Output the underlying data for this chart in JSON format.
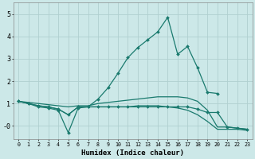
{
  "xlabel": "Humidex (Indice chaleur)",
  "bg_color": "#cce8e8",
  "grid_color": "#b0d0d0",
  "line_color": "#1a7a6e",
  "xlim": [
    -0.5,
    23.5
  ],
  "ylim": [
    -0.6,
    5.5
  ],
  "xtick_labels": [
    "0",
    "1",
    "2",
    "3",
    "4",
    "5",
    "6",
    "7",
    "8",
    "9",
    "10",
    "11",
    "12",
    "13",
    "14",
    "15",
    "16",
    "17",
    "18",
    "19",
    "20",
    "21",
    "22",
    "23"
  ],
  "ytick_values": [
    0,
    1,
    2,
    3,
    4,
    5
  ],
  "ytick_labels": [
    "-0",
    "1",
    "2",
    "3",
    "4",
    "5"
  ],
  "series": [
    {
      "x": [
        0,
        1,
        2,
        3,
        4,
        5,
        6,
        7,
        8,
        9,
        10,
        11,
        12,
        13,
        14,
        15,
        16,
        17,
        18,
        19,
        20
      ],
      "y": [
        1.1,
        1.0,
        0.9,
        0.85,
        0.75,
        0.5,
        0.85,
        0.85,
        1.2,
        1.7,
        2.35,
        3.05,
        3.5,
        3.85,
        4.2,
        4.85,
        3.2,
        3.55,
        2.6,
        1.5,
        1.45
      ],
      "has_markers": true
    },
    {
      "x": [
        0,
        1,
        2,
        3,
        4,
        5,
        6,
        7,
        8,
        9,
        10,
        11,
        12,
        13,
        14,
        15,
        16,
        17,
        18,
        19,
        20,
        21,
        22,
        23
      ],
      "y": [
        1.1,
        1.0,
        0.85,
        0.8,
        0.7,
        -0.3,
        0.8,
        0.85,
        0.85,
        0.85,
        0.85,
        0.85,
        0.85,
        0.85,
        0.85,
        0.85,
        0.85,
        0.85,
        0.75,
        0.6,
        0.6,
        -0.05,
        -0.1,
        -0.15
      ],
      "has_markers": true
    },
    {
      "x": [
        0,
        1,
        2,
        3,
        4,
        5,
        6,
        7,
        8,
        9,
        10,
        11,
        12,
        13,
        14,
        15,
        16,
        17,
        18,
        19,
        20,
        21,
        22,
        23
      ],
      "y": [
        1.1,
        1.05,
        1.0,
        0.95,
        0.9,
        0.85,
        0.9,
        0.9,
        1.0,
        1.05,
        1.1,
        1.15,
        1.2,
        1.25,
        1.3,
        1.3,
        1.3,
        1.25,
        1.1,
        0.7,
        -0.05,
        -0.05,
        -0.1,
        -0.15
      ],
      "has_markers": false
    },
    {
      "x": [
        0,
        1,
        2,
        3,
        4,
        5,
        6,
        7,
        8,
        9,
        10,
        11,
        12,
        13,
        14,
        15,
        16,
        17,
        18,
        19,
        20,
        21,
        22,
        23
      ],
      "y": [
        1.1,
        1.0,
        0.9,
        0.85,
        0.75,
        0.5,
        0.85,
        0.85,
        0.85,
        0.85,
        0.85,
        0.85,
        0.9,
        0.9,
        0.9,
        0.85,
        0.8,
        0.7,
        0.5,
        0.2,
        -0.15,
        -0.15,
        -0.15,
        -0.2
      ],
      "has_markers": false
    }
  ]
}
